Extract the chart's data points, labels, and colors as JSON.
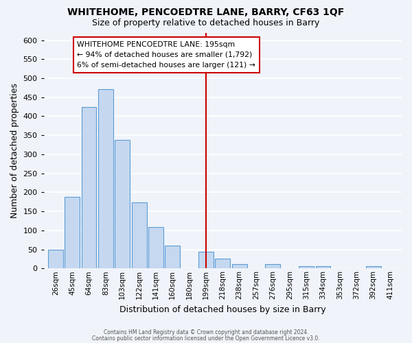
{
  "title": "WHITEHOME, PENCOEDTRE LANE, BARRY, CF63 1QF",
  "subtitle": "Size of property relative to detached houses in Barry",
  "xlabel": "Distribution of detached houses by size in Barry",
  "ylabel": "Number of detached properties",
  "bar_labels": [
    "26sqm",
    "45sqm",
    "64sqm",
    "83sqm",
    "103sqm",
    "122sqm",
    "141sqm",
    "160sqm",
    "180sqm",
    "199sqm",
    "218sqm",
    "238sqm",
    "257sqm",
    "276sqm",
    "295sqm",
    "315sqm",
    "334sqm",
    "353sqm",
    "372sqm",
    "392sqm",
    "411sqm"
  ],
  "bar_values": [
    50,
    188,
    425,
    472,
    338,
    174,
    108,
    60,
    0,
    44,
    25,
    12,
    0,
    12,
    0,
    5,
    5,
    0,
    0,
    5,
    0
  ],
  "bar_color": "#c5d8f0",
  "bar_edge_color": "#5b9bd5",
  "vline_index": 9,
  "vline_color": "#cc0000",
  "ylim": [
    0,
    620
  ],
  "yticks": [
    0,
    50,
    100,
    150,
    200,
    250,
    300,
    350,
    400,
    450,
    500,
    550,
    600
  ],
  "annotation_title": "WHITEHOME PENCOEDTRE LANE: 195sqm",
  "annotation_line1": "← 94% of detached houses are smaller (1,792)",
  "annotation_line2": "6% of semi-detached houses are larger (121) →",
  "annotation_box_color": "#ffffff",
  "annotation_box_edge": "#cc0000",
  "footer1": "Contains HM Land Registry data © Crown copyright and database right 2024.",
  "footer2": "Contains public sector information licensed under the Open Government Licence v3.0.",
  "background_color": "#f0f4fa",
  "grid_color": "#ffffff"
}
